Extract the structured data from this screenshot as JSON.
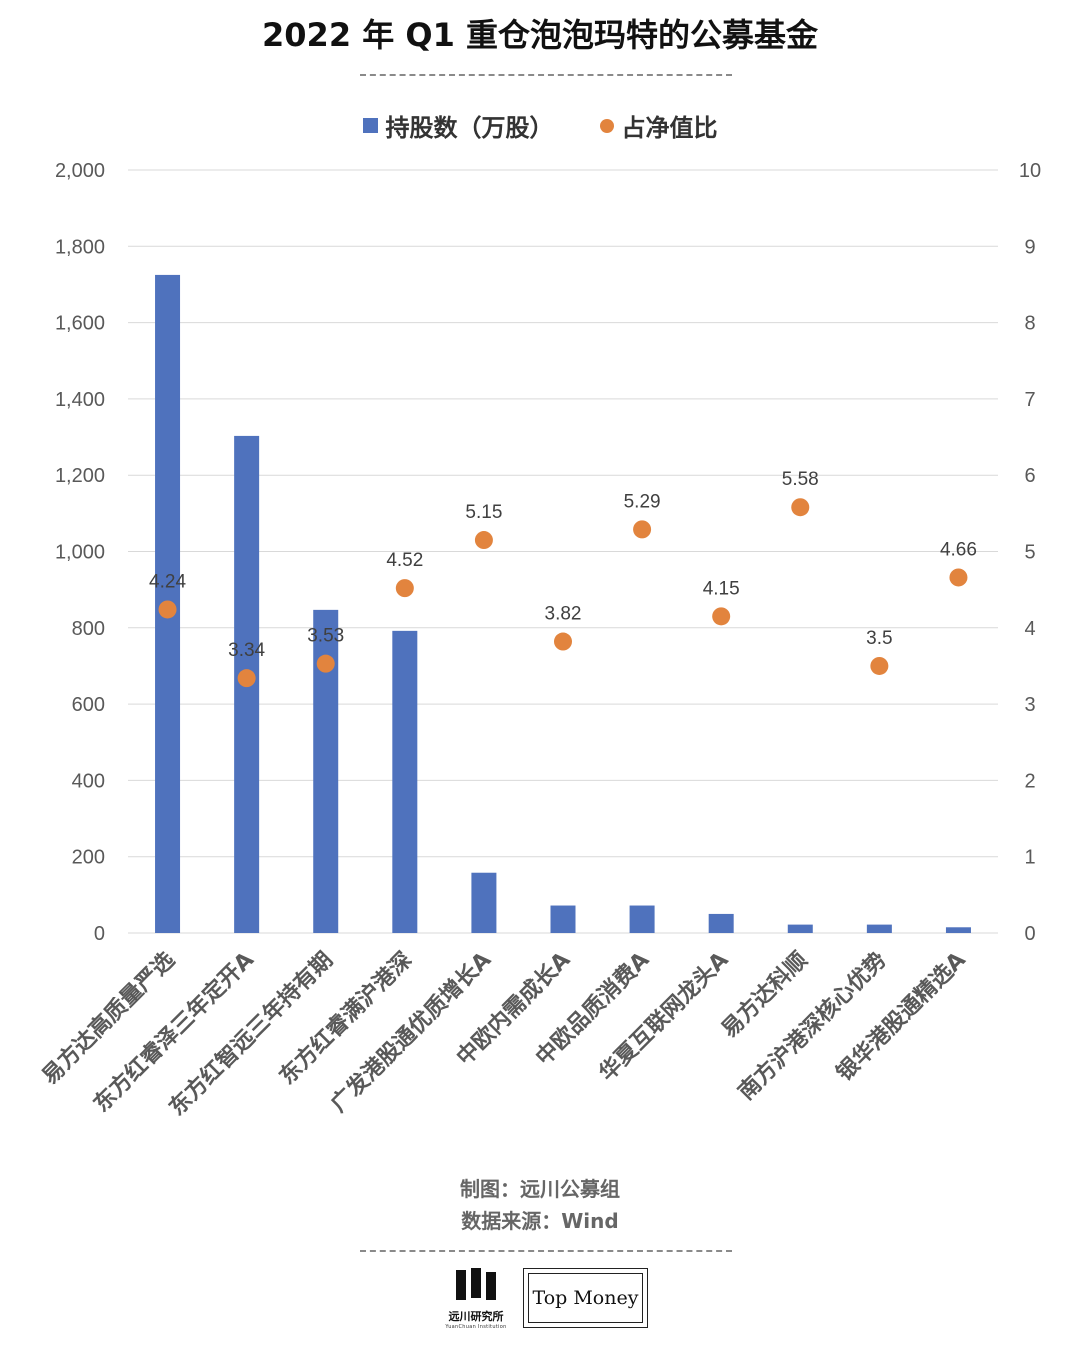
{
  "title": "2022 年 Q1 重仓泡泡玛特的公募基金",
  "legend": {
    "bar_label": "持股数（万股）",
    "dot_label": "占净值比"
  },
  "colors": {
    "bar": "#4f72bd",
    "dot": "#e2843e",
    "grid": "#d9d9d9"
  },
  "credits": {
    "made_by": "制图：远川公募组",
    "source": "数据来源：Wind"
  },
  "logos": {
    "yuanchuan_name": "远川研究所",
    "yuanchuan_sub": "YuanChuan Institution",
    "topmoney": "Top Money"
  },
  "chart_data": {
    "type": "bar",
    "categories": [
      "易方达高质量严选",
      "东方红睿泽三年定开A",
      "东方红智远三年持有期",
      "东方红睿满沪港深",
      "广发港股通优质增长A",
      "中欧内需成长A",
      "中欧品质消费A",
      "华夏互联网龙头A",
      "易方达科顺",
      "南方沪港深核心优势",
      "银华港股通精选A"
    ],
    "series": [
      {
        "name": "持股数（万股）",
        "type": "bar",
        "axis": "left",
        "values": [
          1725,
          1303,
          847,
          792,
          158,
          72,
          72,
          50,
          22,
          22,
          15
        ]
      },
      {
        "name": "占净值比",
        "type": "scatter",
        "axis": "right",
        "values": [
          4.24,
          3.34,
          3.53,
          4.52,
          5.15,
          3.82,
          5.29,
          4.15,
          5.58,
          3.5,
          4.66
        ],
        "labels": [
          "4.24",
          "3.34",
          "3.53",
          "4.52",
          "5.15",
          "3.82",
          "5.29",
          "4.15",
          "5.58",
          "3.5",
          "4.66"
        ]
      }
    ],
    "y_left": {
      "ylim": [
        0,
        2000
      ],
      "ticks": [
        "0",
        "200",
        "400",
        "600",
        "800",
        "1,000",
        "1,200",
        "1,400",
        "1,600",
        "1,800",
        "2,000"
      ]
    },
    "y_right": {
      "ylim": [
        0,
        10
      ],
      "ticks": [
        "0",
        "1",
        "2",
        "3",
        "4",
        "5",
        "6",
        "7",
        "8",
        "9",
        "10"
      ]
    },
    "grid": true,
    "legend_position": "top-center"
  }
}
